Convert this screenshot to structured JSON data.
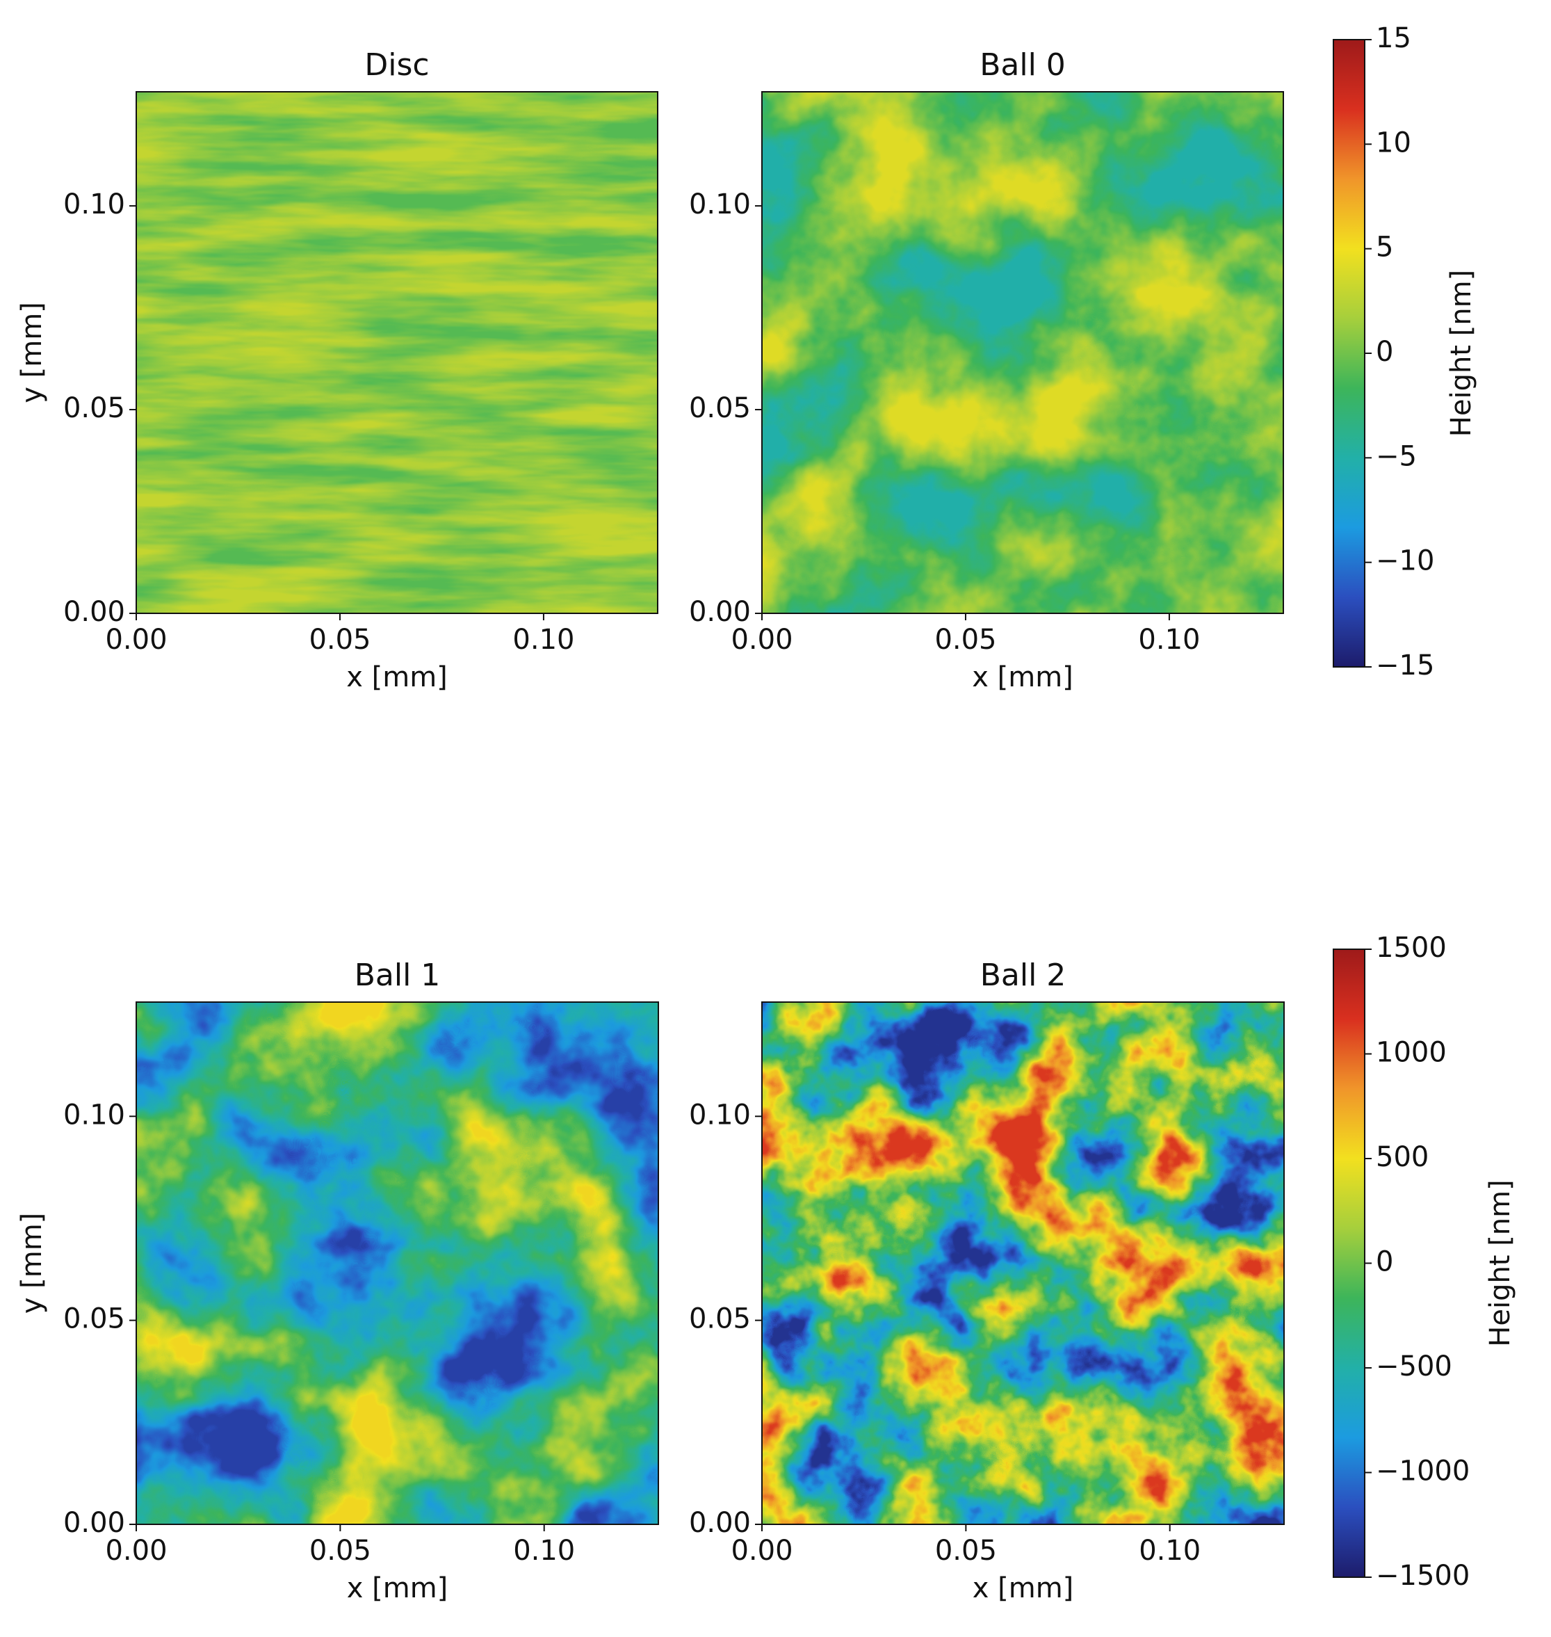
{
  "chart_data": [
    {
      "type": "heatmap",
      "title": "Disc",
      "xlabel": "x [mm]",
      "ylabel": "y [mm]",
      "xlim": [
        0,
        0.128
      ],
      "ylim": [
        0,
        0.128
      ],
      "xticks": [
        {
          "value": 0,
          "label": "0.00"
        },
        {
          "value": 0.05,
          "label": "0.05"
        },
        {
          "value": 0.1,
          "label": "0.10"
        }
      ],
      "yticks": [
        {
          "value": 0,
          "label": "0.00"
        },
        {
          "value": 0.05,
          "label": "0.05"
        },
        {
          "value": 0.1,
          "label": "0.10"
        }
      ],
      "colormap": [
        "#1d1c6b",
        "#2b4fbf",
        "#1c9be0",
        "#22b0a8",
        "#3db55a",
        "#a6cf3c",
        "#f2e01f",
        "#f0952a",
        "#d9301f",
        "#9e1a1a"
      ]
    },
    {
      "type": "heatmap",
      "title": "Ball 0",
      "xlabel": "x [mm]",
      "xlim": [
        0,
        0.128
      ],
      "ylim": [
        0,
        0.128
      ],
      "xticks": [
        {
          "value": 0,
          "label": "0.00"
        },
        {
          "value": 0.05,
          "label": "0.05"
        },
        {
          "value": 0.1,
          "label": "0.10"
        }
      ],
      "yticks": [
        {
          "value": 0,
          "label": "0.00"
        },
        {
          "value": 0.05,
          "label": "0.05"
        },
        {
          "value": 0.1,
          "label": "0.10"
        }
      ],
      "colormap": [
        "#1d1c6b",
        "#2b4fbf",
        "#1c9be0",
        "#22b0a8",
        "#3db55a",
        "#a6cf3c",
        "#f2e01f",
        "#f0952a",
        "#d9301f",
        "#9e1a1a"
      ],
      "colorbar": {
        "label": "Height [nm]",
        "lim": [
          -15,
          15
        ],
        "ticks": [
          15,
          10,
          5,
          0,
          {
            "value": -5,
            "label": "−5"
          },
          {
            "value": -10,
            "label": "−10"
          },
          {
            "value": -15,
            "label": "−15"
          }
        ]
      }
    },
    {
      "type": "heatmap",
      "title": "Ball 1",
      "xlabel": "x [mm]",
      "ylabel": "y [mm]",
      "xlim": [
        0,
        0.128
      ],
      "ylim": [
        0,
        0.128
      ],
      "xticks": [
        {
          "value": 0,
          "label": "0.00"
        },
        {
          "value": 0.05,
          "label": "0.05"
        },
        {
          "value": 0.1,
          "label": "0.10"
        }
      ],
      "yticks": [
        {
          "value": 0,
          "label": "0.00"
        },
        {
          "value": 0.05,
          "label": "0.05"
        },
        {
          "value": 0.1,
          "label": "0.10"
        }
      ],
      "colormap": [
        "#1d1c6b",
        "#2b4fbf",
        "#1c9be0",
        "#22b0a8",
        "#3db55a",
        "#a6cf3c",
        "#f2e01f",
        "#f0952a",
        "#d9301f",
        "#9e1a1a"
      ]
    },
    {
      "type": "heatmap",
      "title": "Ball 2",
      "xlabel": "x [mm]",
      "xlim": [
        0,
        0.128
      ],
      "ylim": [
        0,
        0.128
      ],
      "xticks": [
        {
          "value": 0,
          "label": "0.00"
        },
        {
          "value": 0.05,
          "label": "0.05"
        },
        {
          "value": 0.1,
          "label": "0.10"
        }
      ],
      "yticks": [
        {
          "value": 0,
          "label": "0.00"
        },
        {
          "value": 0.05,
          "label": "0.05"
        },
        {
          "value": 0.1,
          "label": "0.10"
        }
      ],
      "colormap": [
        "#1d1c6b",
        "#2b4fbf",
        "#1c9be0",
        "#22b0a8",
        "#3db55a",
        "#a6cf3c",
        "#f2e01f",
        "#f0952a",
        "#d9301f",
        "#9e1a1a"
      ],
      "colorbar": {
        "label": "Height [nm]",
        "lim": [
          -1500,
          1500
        ],
        "ticks": [
          1500,
          1000,
          500,
          0,
          {
            "value": -500,
            "label": "−500"
          },
          {
            "value": -1000,
            "label": "−1000"
          },
          {
            "value": -1500,
            "label": "−1500"
          }
        ]
      }
    }
  ]
}
